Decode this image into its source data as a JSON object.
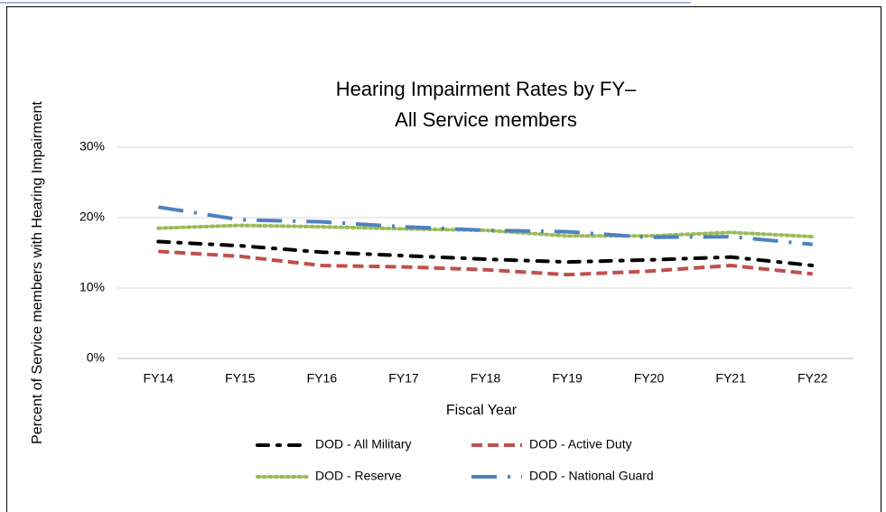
{
  "chart_data": {
    "type": "line",
    "title": [
      "Hearing Impairment Rates by FY–",
      "All Service members"
    ],
    "xlabel": "Fiscal Year",
    "ylabel": "Percent of Service members with Hearing Impairment",
    "categories": [
      "FY14",
      "FY15",
      "FY16",
      "FY17",
      "FY18",
      "FY19",
      "FY20",
      "FY21",
      "FY22"
    ],
    "series": [
      {
        "name": "DOD - All Military",
        "color": "#000000",
        "dash": "dash-dot",
        "values": [
          16.6,
          16.0,
          15.1,
          14.6,
          14.1,
          13.7,
          14.0,
          14.4,
          13.2
        ]
      },
      {
        "name": "DOD - Active Duty",
        "color": "#c0504d",
        "dash": "dash",
        "values": [
          15.2,
          14.5,
          13.2,
          13.0,
          12.6,
          11.9,
          12.4,
          13.2,
          12.0
        ]
      },
      {
        "name": "DOD - Reserve",
        "color": "#9bbb59",
        "dash": "dot",
        "values": [
          18.5,
          18.9,
          18.7,
          18.4,
          18.2,
          17.4,
          17.4,
          17.9,
          17.3
        ]
      },
      {
        "name": "DOD - National Guard",
        "color": "#4f81bd",
        "dash": "long-dash-dot",
        "values": [
          21.5,
          19.7,
          19.4,
          18.7,
          18.2,
          18.0,
          17.2,
          17.3,
          16.2
        ]
      }
    ],
    "ylim": [
      0,
      30
    ],
    "yticks": [
      {
        "value": 0,
        "label": "0%"
      },
      {
        "value": 10,
        "label": "10%"
      },
      {
        "value": 20,
        "label": "20%"
      },
      {
        "value": 30,
        "label": "30%"
      }
    ],
    "grid": true,
    "legend": "bottom"
  }
}
